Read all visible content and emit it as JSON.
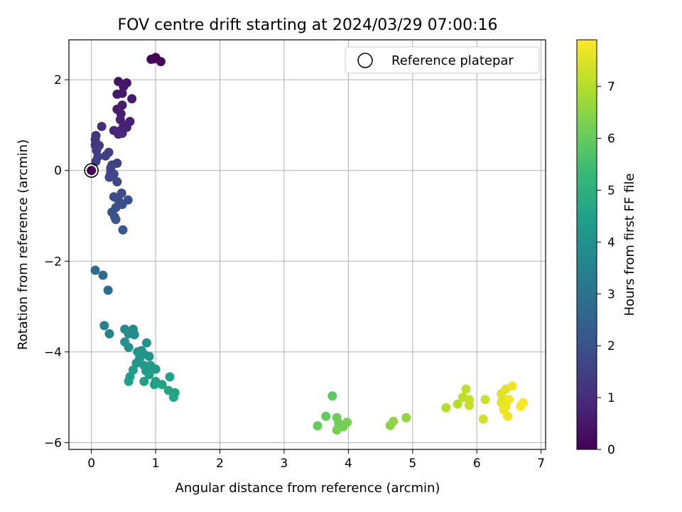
{
  "chart_data": {
    "type": "scatter",
    "title": "FOV centre drift starting at 2024/03/29 07:00:16",
    "xlabel": "Angular distance from reference (arcmin)",
    "ylabel": "Rotation from reference (arcmin)",
    "xlim": [
      -0.35,
      7.07
    ],
    "ylim": [
      -6.15,
      2.88
    ],
    "xticks": [
      0,
      1,
      2,
      3,
      4,
      5,
      6,
      7
    ],
    "yticks": [
      -6,
      -4,
      -2,
      0,
      2
    ],
    "xtick_labels": [
      "0",
      "1",
      "2",
      "3",
      "4",
      "5",
      "6",
      "7"
    ],
    "ytick_labels": [
      "−6",
      "−4",
      "−2",
      "0",
      "2"
    ],
    "grid": true,
    "colormap": "viridis",
    "colorbar": {
      "label": "Hours from first FF file",
      "range": [
        0,
        7.9
      ],
      "ticks": [
        0,
        1,
        2,
        3,
        4,
        5,
        6,
        7
      ],
      "tick_labels": [
        "0",
        "1",
        "2",
        "3",
        "4",
        "5",
        "6",
        "7"
      ]
    },
    "legend": {
      "location": "upper right",
      "entries": [
        "Reference platepar"
      ]
    },
    "reference_point": {
      "x": 0,
      "y": 0
    },
    "points": [
      {
        "x": 0.0,
        "y": 0.0,
        "c": 0.0
      },
      {
        "x": 0.97,
        "y": 2.46,
        "c": 0.1
      },
      {
        "x": 1.0,
        "y": 2.49,
        "c": 0.1
      },
      {
        "x": 1.08,
        "y": 2.4,
        "c": 0.15
      },
      {
        "x": 0.93,
        "y": 2.45,
        "c": 0.1
      },
      {
        "x": 0.42,
        "y": 1.96,
        "c": 0.4
      },
      {
        "x": 0.55,
        "y": 1.93,
        "c": 0.45
      },
      {
        "x": 0.5,
        "y": 1.85,
        "c": 0.5
      },
      {
        "x": 0.48,
        "y": 1.7,
        "c": 0.5
      },
      {
        "x": 0.4,
        "y": 1.68,
        "c": 0.55
      },
      {
        "x": 0.63,
        "y": 1.58,
        "c": 0.55
      },
      {
        "x": 0.48,
        "y": 1.44,
        "c": 0.6
      },
      {
        "x": 0.4,
        "y": 1.35,
        "c": 0.6
      },
      {
        "x": 0.46,
        "y": 1.25,
        "c": 0.65
      },
      {
        "x": 0.45,
        "y": 1.12,
        "c": 0.7
      },
      {
        "x": 0.6,
        "y": 1.08,
        "c": 0.7
      },
      {
        "x": 0.5,
        "y": 1.0,
        "c": 0.75
      },
      {
        "x": 0.55,
        "y": 0.95,
        "c": 0.75
      },
      {
        "x": 0.45,
        "y": 0.88,
        "c": 0.8
      },
      {
        "x": 0.35,
        "y": 0.88,
        "c": 0.8
      },
      {
        "x": 0.48,
        "y": 0.82,
        "c": 0.85
      },
      {
        "x": 0.42,
        "y": 0.8,
        "c": 0.9
      },
      {
        "x": 0.16,
        "y": 0.97,
        "c": 1.0
      },
      {
        "x": 0.07,
        "y": 0.77,
        "c": 1.2
      },
      {
        "x": 0.06,
        "y": 0.68,
        "c": 1.25
      },
      {
        "x": 0.06,
        "y": 0.56,
        "c": 1.3
      },
      {
        "x": 0.12,
        "y": 0.55,
        "c": 1.35
      },
      {
        "x": 0.08,
        "y": 0.44,
        "c": 1.4
      },
      {
        "x": 0.27,
        "y": 0.4,
        "c": 1.45
      },
      {
        "x": 0.22,
        "y": 0.32,
        "c": 1.45
      },
      {
        "x": 0.1,
        "y": 0.3,
        "c": 1.5
      },
      {
        "x": 0.07,
        "y": 0.2,
        "c": 1.5
      },
      {
        "x": 0.4,
        "y": 0.16,
        "c": 1.55
      },
      {
        "x": 0.32,
        "y": 0.12,
        "c": 1.6
      },
      {
        "x": 0.3,
        "y": 0.05,
        "c": 1.6
      },
      {
        "x": 0.3,
        "y": -0.05,
        "c": 1.65
      },
      {
        "x": 0.35,
        "y": -0.08,
        "c": 1.7
      },
      {
        "x": 0.28,
        "y": -0.15,
        "c": 1.7
      },
      {
        "x": 0.4,
        "y": -0.25,
        "c": 1.75
      },
      {
        "x": 0.47,
        "y": -0.5,
        "c": 1.8
      },
      {
        "x": 0.35,
        "y": -0.58,
        "c": 1.85
      },
      {
        "x": 0.42,
        "y": -0.65,
        "c": 1.85
      },
      {
        "x": 0.57,
        "y": -0.65,
        "c": 1.9
      },
      {
        "x": 0.48,
        "y": -0.75,
        "c": 1.95
      },
      {
        "x": 0.38,
        "y": -0.82,
        "c": 1.95
      },
      {
        "x": 0.32,
        "y": -0.92,
        "c": 2.0
      },
      {
        "x": 0.36,
        "y": -1.02,
        "c": 2.05
      },
      {
        "x": 0.38,
        "y": -1.08,
        "c": 2.1
      },
      {
        "x": 0.49,
        "y": -1.31,
        "c": 2.15
      },
      {
        "x": 0.06,
        "y": -2.2,
        "c": 2.7
      },
      {
        "x": 0.18,
        "y": -2.31,
        "c": 2.75
      },
      {
        "x": 0.26,
        "y": -2.64,
        "c": 2.8
      },
      {
        "x": 0.2,
        "y": -3.42,
        "c": 3.5
      },
      {
        "x": 0.28,
        "y": -3.6,
        "c": 3.55
      },
      {
        "x": 0.52,
        "y": -3.5,
        "c": 3.7
      },
      {
        "x": 0.65,
        "y": -3.5,
        "c": 3.8
      },
      {
        "x": 0.58,
        "y": -3.6,
        "c": 3.85
      },
      {
        "x": 0.67,
        "y": -3.62,
        "c": 3.85
      },
      {
        "x": 0.52,
        "y": -3.78,
        "c": 3.9
      },
      {
        "x": 0.58,
        "y": -3.9,
        "c": 3.95
      },
      {
        "x": 0.78,
        "y": -3.97,
        "c": 4.0
      },
      {
        "x": 0.86,
        "y": -3.8,
        "c": 4.0
      },
      {
        "x": 0.72,
        "y": -4.0,
        "c": 4.05
      },
      {
        "x": 0.82,
        "y": -4.05,
        "c": 4.1
      },
      {
        "x": 0.9,
        "y": -4.1,
        "c": 4.1
      },
      {
        "x": 0.75,
        "y": -4.15,
        "c": 4.15
      },
      {
        "x": 0.7,
        "y": -4.25,
        "c": 4.2
      },
      {
        "x": 0.82,
        "y": -4.3,
        "c": 4.2
      },
      {
        "x": 0.92,
        "y": -4.3,
        "c": 4.25
      },
      {
        "x": 1.0,
        "y": -4.38,
        "c": 4.3
      },
      {
        "x": 0.85,
        "y": -4.42,
        "c": 4.3
      },
      {
        "x": 0.65,
        "y": -4.4,
        "c": 4.35
      },
      {
        "x": 0.9,
        "y": -4.5,
        "c": 4.4
      },
      {
        "x": 0.6,
        "y": -4.55,
        "c": 4.4
      },
      {
        "x": 0.82,
        "y": -4.65,
        "c": 4.45
      },
      {
        "x": 0.58,
        "y": -4.65,
        "c": 4.45
      },
      {
        "x": 1.0,
        "y": -4.65,
        "c": 4.5
      },
      {
        "x": 1.1,
        "y": -4.72,
        "c": 4.5
      },
      {
        "x": 0.98,
        "y": -4.72,
        "c": 4.55
      },
      {
        "x": 1.22,
        "y": -4.55,
        "c": 4.55
      },
      {
        "x": 1.2,
        "y": -4.85,
        "c": 4.6
      },
      {
        "x": 1.3,
        "y": -4.9,
        "c": 4.6
      },
      {
        "x": 1.28,
        "y": -5.0,
        "c": 4.65
      },
      {
        "x": 3.75,
        "y": -4.97,
        "c": 5.9
      },
      {
        "x": 3.65,
        "y": -5.42,
        "c": 6.0
      },
      {
        "x": 3.52,
        "y": -5.63,
        "c": 6.05
      },
      {
        "x": 3.82,
        "y": -5.45,
        "c": 6.1
      },
      {
        "x": 3.85,
        "y": -5.58,
        "c": 6.15
      },
      {
        "x": 3.92,
        "y": -5.65,
        "c": 6.2
      },
      {
        "x": 3.98,
        "y": -5.55,
        "c": 6.25
      },
      {
        "x": 3.82,
        "y": -5.72,
        "c": 6.25
      },
      {
        "x": 4.65,
        "y": -5.62,
        "c": 6.5
      },
      {
        "x": 4.7,
        "y": -5.53,
        "c": 6.55
      },
      {
        "x": 4.9,
        "y": -5.45,
        "c": 6.6
      },
      {
        "x": 5.52,
        "y": -5.23,
        "c": 7.0
      },
      {
        "x": 5.7,
        "y": -5.15,
        "c": 7.05
      },
      {
        "x": 5.78,
        "y": -5.0,
        "c": 7.1
      },
      {
        "x": 5.83,
        "y": -4.82,
        "c": 7.15
      },
      {
        "x": 5.88,
        "y": -5.05,
        "c": 7.2
      },
      {
        "x": 5.88,
        "y": -5.18,
        "c": 7.2
      },
      {
        "x": 6.13,
        "y": -5.05,
        "c": 7.3
      },
      {
        "x": 6.1,
        "y": -5.48,
        "c": 7.35
      },
      {
        "x": 6.38,
        "y": -4.92,
        "c": 7.5
      },
      {
        "x": 6.45,
        "y": -4.82,
        "c": 7.55
      },
      {
        "x": 6.4,
        "y": -5.02,
        "c": 7.6
      },
      {
        "x": 6.38,
        "y": -5.12,
        "c": 7.6
      },
      {
        "x": 6.45,
        "y": -5.2,
        "c": 7.65
      },
      {
        "x": 6.48,
        "y": -5.42,
        "c": 7.7
      },
      {
        "x": 6.55,
        "y": -4.75,
        "c": 7.7
      },
      {
        "x": 6.42,
        "y": -5.28,
        "c": 7.75
      },
      {
        "x": 6.5,
        "y": -5.05,
        "c": 7.75
      },
      {
        "x": 6.68,
        "y": -5.2,
        "c": 7.8
      },
      {
        "x": 6.72,
        "y": -5.12,
        "c": 7.85
      }
    ]
  }
}
